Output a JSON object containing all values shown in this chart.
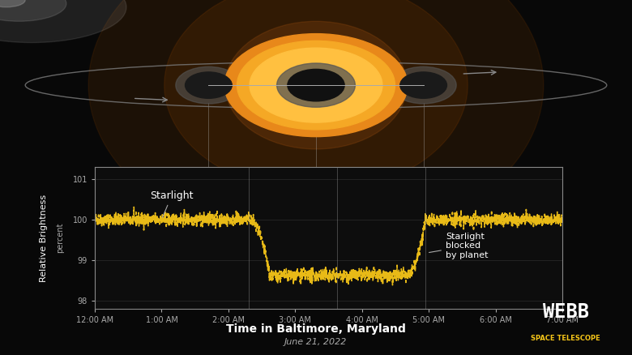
{
  "bg_color": "#080808",
  "plot_bg_color": "#0d0d0d",
  "plot_edge_color": "#888888",
  "line_color": "#f5c518",
  "line_width": 1.2,
  "yticks": [
    98,
    99,
    100,
    101
  ],
  "ylim": [
    97.8,
    101.3
  ],
  "xlim": [
    0,
    7
  ],
  "xtick_labels": [
    "12:00 AM",
    "1:00 AM",
    "2:00 AM",
    "3:00 AM",
    "4:00 AM",
    "5:00 AM",
    "6:00 AM",
    "7:00 AM"
  ],
  "ylabel": "Relative Brightness",
  "ylabel2": "percent",
  "xlabel": "Time in Baltimore, Maryland",
  "xlabel2": "June 21, 2022",
  "annotation_starlight": "Starlight",
  "annotation_blocked": "Starlight\nblocked\nby planet",
  "transit_start": 2.3,
  "transit_end": 4.95,
  "min_brightness": 98.62,
  "flat_brightness": 100.0,
  "noise_amp": 0.08,
  "text_color": "#ffffff",
  "tick_color": "#aaaaaa",
  "grid_color": "#333333",
  "webb_text_color": "#f5c518",
  "ingress_dur": 0.32,
  "egress_dur": 0.28
}
